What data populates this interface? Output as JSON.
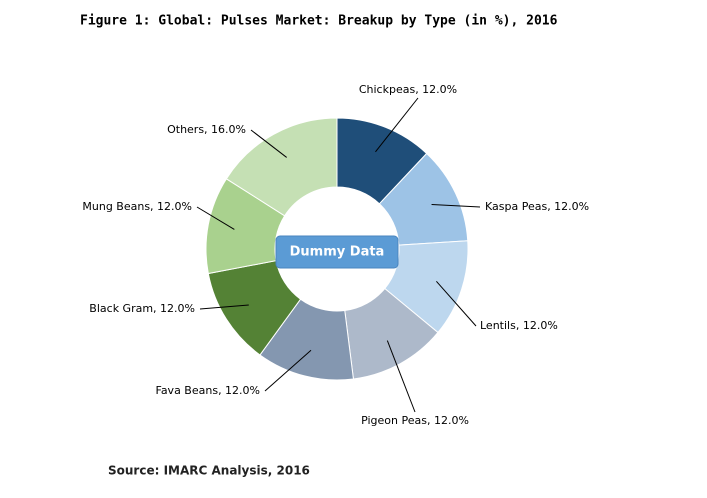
{
  "chart_data": {
    "type": "pie",
    "donut": true,
    "title": "Figure 1: Global: Pulses Market: Breakup by Type (in %), 2016",
    "values": [
      12,
      12,
      12,
      12,
      12,
      12,
      12,
      16
    ],
    "value_labels": [
      "Chickpeas, 12.0%",
      "Kaspa Peas, 12.0%",
      "Lentils, 12.0%",
      "Pigeon Peas, 12.0%",
      "Fava Beans, 12.0%",
      "Black Gram, 12.0%",
      "Mung Beans, 12.0%",
      "Others, 16.0%"
    ],
    "colors": [
      "#1f4e79",
      "#9dc3e6",
      "#bdd7ee",
      "#adb9ca",
      "#8497b0",
      "#548235",
      "#a9d18e",
      "#c5e0b4"
    ],
    "watermark": "Dummy Data",
    "source": "Source: IMARC Analysis, 2016"
  }
}
